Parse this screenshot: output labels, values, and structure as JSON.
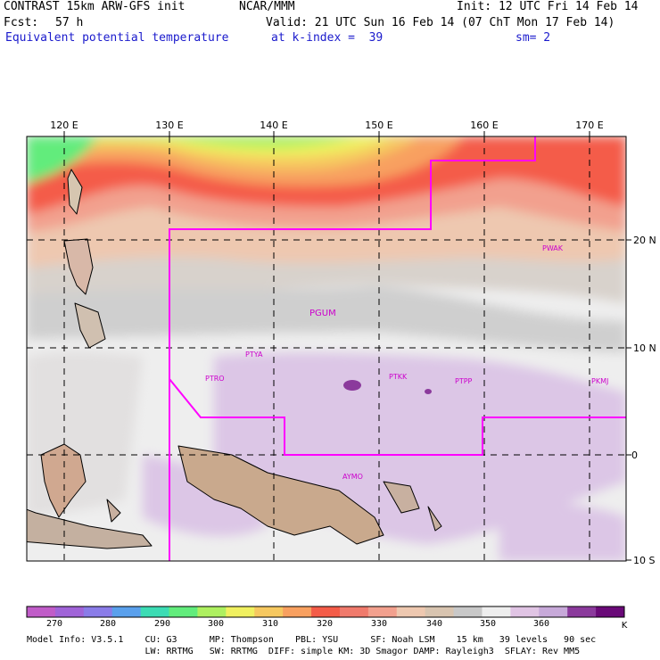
{
  "header": {
    "title": "CONTRAST 15km ARW-GFS init",
    "org": "NCAR/MMM",
    "init": "Init: 12 UTC Fri 14 Feb 14",
    "fcst_label": "Fcst:",
    "fcst_value": "57 h",
    "valid": "Valid: 21 UTC Sun 16 Feb 14 (07 ChT Mon 17 Feb 14)",
    "field": "Equivalent potential temperature",
    "level": "at k-index =  39",
    "smoothing": "sm= 2"
  },
  "map": {
    "lon_labels": [
      "120 E",
      "130 E",
      "140 E",
      "150 E",
      "160 E",
      "170 E"
    ],
    "lat_labels": [
      "20 N",
      "10 N",
      "0",
      "10 S"
    ],
    "stations": [
      "PWAK",
      "PGUM",
      "PTYA",
      "PTRO",
      "PTKK",
      "PTPP",
      "PKMJ",
      "AYMO"
    ]
  },
  "colorbar": {
    "colors": [
      "#c05cc8",
      "#a064d8",
      "#8a7ce8",
      "#5aa0ec",
      "#3cdcb4",
      "#62ec7c",
      "#aef060",
      "#f0f060",
      "#f6c860",
      "#f8a060",
      "#f45c48",
      "#f07a6c",
      "#f2a08e",
      "#eec8b0",
      "#d8c4b0",
      "#c8c8c8",
      "#eeeeee",
      "#e0c4e4",
      "#c7a9d9",
      "#8b3a9c",
      "#6a0a78"
    ],
    "labels": [
      "270",
      "280",
      "290",
      "300",
      "310",
      "320",
      "330",
      "340",
      "350",
      "360"
    ],
    "unit": "K"
  },
  "footer": {
    "line1": "Model Info: V3.5.1    CU: G3      MP: Thompson    PBL: YSU      SF: Noah LSM    15 km   39 levels   90 sec",
    "line2": "                      LW: RRTMG   SW: RRTMG  DIFF: simple KM: 3D Smagor DAMP: Rayleigh3  SFLAY: Rev MM5"
  }
}
